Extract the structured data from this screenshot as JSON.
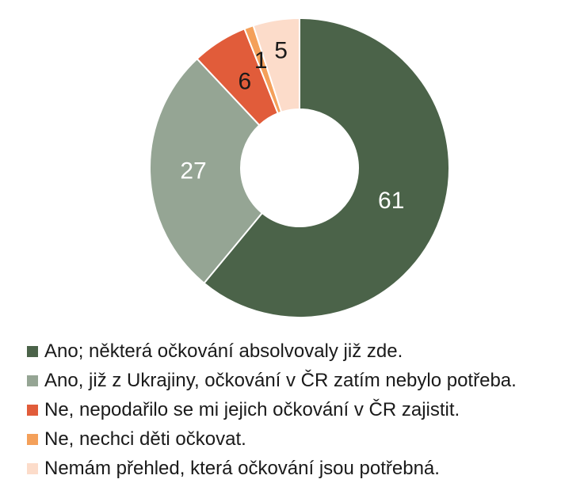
{
  "chart_data": {
    "type": "pie",
    "donut": true,
    "legend_position": "bottom",
    "slices": [
      {
        "label": "Ano; některá očkování absolvovaly již zde.",
        "value": 61,
        "color": "#4b6349",
        "label_color": "#ffffff"
      },
      {
        "label": "Ano, již z Ukrajiny, očkování v ČR zatím nebylo potřeba.",
        "value": 27,
        "color": "#95a594",
        "label_color": "#ffffff"
      },
      {
        "label": "Ne, nepodařilo se mi jejich očkování v ČR zajistit.",
        "value": 6,
        "color": "#e15c3a",
        "label_color": "#1a1a1a"
      },
      {
        "label": "Ne, nechci děti očkovat.",
        "value": 1,
        "color": "#f4a05a",
        "label_color": "#1a1a1a"
      },
      {
        "label": "Nemám přehled, která očkování jsou potřebná.",
        "value": 5,
        "color": "#fcdcca",
        "label_color": "#1a1a1a"
      }
    ]
  }
}
